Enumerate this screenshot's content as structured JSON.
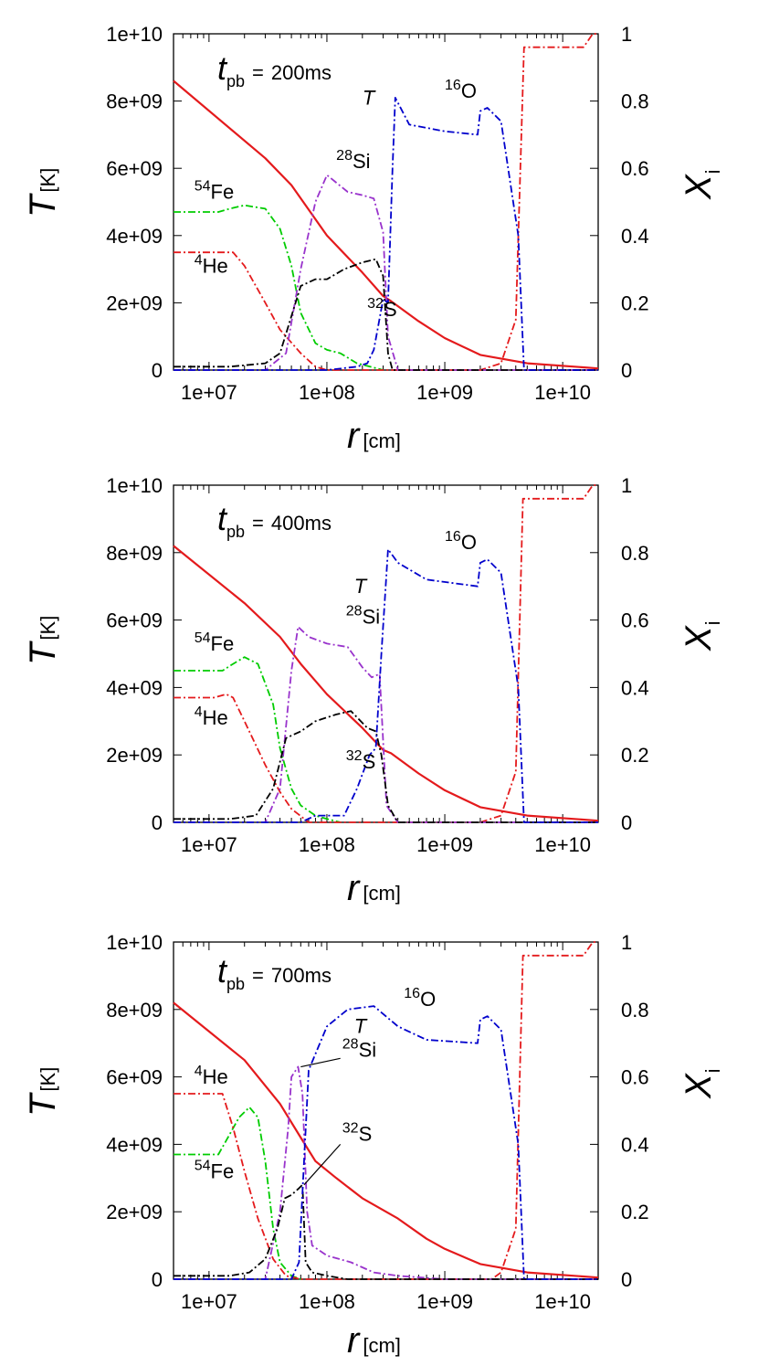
{
  "panels": [
    {
      "time_label": "200ms",
      "time_symbol": "t",
      "time_sub": "pb",
      "time_eq": "=",
      "ylabel_left": "T",
      "ylabel_left_unit": "[K]",
      "ylabel_right": "X",
      "ylabel_right_sub": "i",
      "xlabel": "r",
      "xlabel_unit": "[cm]"
    },
    {
      "time_label": "400ms",
      "time_symbol": "t",
      "time_sub": "pb",
      "time_eq": "=",
      "ylabel_left": "T",
      "ylabel_left_unit": "[K]",
      "ylabel_right": "X",
      "ylabel_right_sub": "i",
      "xlabel": "r",
      "xlabel_unit": "[cm]"
    },
    {
      "time_label": "700ms",
      "time_symbol": "t",
      "time_sub": "pb",
      "time_eq": "=",
      "ylabel_left": "T",
      "ylabel_left_unit": "[K]",
      "ylabel_right": "X",
      "ylabel_right_sub": "i",
      "xlabel": "r",
      "xlabel_unit": "[cm]"
    }
  ],
  "chart_data": [
    {
      "type": "line",
      "title": "t_pb = 200ms",
      "xscale": "log",
      "xlim": [
        5000000,
        20000000000
      ],
      "xticks": [
        "1e+07",
        "1e+08",
        "1e+09",
        "1e+10"
      ],
      "ylim_left": [
        0,
        10000000000
      ],
      "yticks_left": [
        "0",
        "2e+09",
        "4e+09",
        "6e+09",
        "8e+09",
        "1e+10"
      ],
      "ylim_right": [
        0,
        1
      ],
      "yticks_right": [
        "0",
        "0.2",
        "0.4",
        "0.6",
        "0.8",
        "1"
      ],
      "series": [
        {
          "name": "T",
          "axis": "left",
          "color": "#e41a1c",
          "dash": "solid",
          "x": [
            5000000.0,
            30000000.0,
            50000000.0,
            100000000.0,
            200000000.0,
            300000000.0,
            350000000.0,
            600000000.0,
            1000000000.0,
            2000000000.0,
            5000000000.0,
            20000000000.0
          ],
          "y": [
            8600000000.0,
            6300000000.0,
            5500000000.0,
            4000000000.0,
            2900000000.0,
            2200000000.0,
            2050000000.0,
            1450000000.0,
            950000000.0,
            450000000.0,
            200000000.0,
            50000000.0
          ]
        },
        {
          "name": "54Fe",
          "sup": "54",
          "el": "Fe",
          "axis": "right",
          "color": "#00cc00",
          "dash": "dashdot",
          "x": [
            5000000.0,
            12000000.0,
            15000000.0,
            20000000.0,
            30000000.0,
            40000000.0,
            50000000.0,
            60000000.0,
            80000000.0,
            100000000.0,
            130000000.0,
            180000000.0,
            300000000.0
          ],
          "y": [
            0.47,
            0.47,
            0.48,
            0.49,
            0.48,
            0.42,
            0.31,
            0.17,
            0.08,
            0.06,
            0.05,
            0.02,
            0
          ]
        },
        {
          "name": "4He",
          "sup": "4",
          "el": "He",
          "axis": "right",
          "color": "#e41a1c",
          "dash": "dashdot",
          "x": [
            5000000.0,
            16000000.0,
            20000000.0,
            30000000.0,
            40000000.0,
            60000000.0,
            80000000.0,
            100000000.0,
            2000000000.0,
            3000000000.0,
            4000000000.0,
            4700000000.0,
            15000000000.0,
            18000000000.0,
            20000000000.0
          ],
          "y": [
            0.35,
            0.35,
            0.31,
            0.2,
            0.12,
            0.05,
            0.01,
            0,
            0,
            0.02,
            0.15,
            0.96,
            0.96,
            1.0,
            1.0
          ]
        },
        {
          "name": "28Si",
          "sup": "28",
          "el": "Si",
          "axis": "right",
          "color": "#9933cc",
          "dash": "dashdot",
          "x": [
            5000000.0,
            30000000.0,
            45000000.0,
            60000000.0,
            80000000.0,
            100000000.0,
            150000000.0,
            200000000.0,
            250000000.0,
            300000000.0,
            330000000.0,
            400000000.0,
            1000000000.0,
            20000000000.0
          ],
          "y": [
            0,
            0,
            0.05,
            0.3,
            0.5,
            0.58,
            0.53,
            0.52,
            0.51,
            0.41,
            0.1,
            0,
            0,
            0
          ]
        },
        {
          "name": "32S",
          "sup": "32",
          "el": "S",
          "axis": "right",
          "color": "#000000",
          "dash": "dashdot",
          "x": [
            5000000.0,
            15000000.0,
            30000000.0,
            40000000.0,
            60000000.0,
            80000000.0,
            100000000.0,
            140000000.0,
            200000000.0,
            260000000.0,
            300000000.0,
            330000000.0,
            360000000.0,
            20000000000.0
          ],
          "y": [
            0.01,
            0.01,
            0.02,
            0.05,
            0.25,
            0.27,
            0.27,
            0.3,
            0.32,
            0.33,
            0.28,
            0.05,
            0,
            0
          ]
        },
        {
          "name": "16O",
          "sup": "16",
          "el": "O",
          "axis": "right",
          "color": "#0000cc",
          "dash": "dashdot",
          "x": [
            5000000.0,
            100000000.0,
            180000000.0,
            220000000.0,
            250000000.0,
            300000000.0,
            330000000.0,
            360000000.0,
            380000000.0,
            500000000.0,
            1000000000.0,
            1900000000.0,
            2000000000.0,
            2300000000.0,
            3000000000.0,
            4200000000.0,
            4700000000.0,
            20000000000.0
          ],
          "y": [
            0,
            0,
            0.01,
            0.02,
            0.06,
            0.21,
            0.2,
            0.6,
            0.81,
            0.73,
            0.71,
            0.7,
            0.77,
            0.78,
            0.74,
            0.4,
            0,
            0
          ]
        }
      ]
    },
    {
      "type": "line",
      "title": "t_pb = 400ms",
      "xscale": "log",
      "xlim": [
        5000000,
        20000000000
      ],
      "xticks": [
        "1e+07",
        "1e+08",
        "1e+09",
        "1e+10"
      ],
      "ylim_left": [
        0,
        10000000000
      ],
      "yticks_left": [
        "0",
        "2e+09",
        "4e+09",
        "6e+09",
        "8e+09",
        "1e+10"
      ],
      "ylim_right": [
        0,
        1
      ],
      "yticks_right": [
        "0",
        "0.2",
        "0.4",
        "0.6",
        "0.8",
        "1"
      ],
      "series": [
        {
          "name": "T",
          "axis": "left",
          "color": "#e41a1c",
          "dash": "solid",
          "x": [
            5000000.0,
            20000000.0,
            40000000.0,
            60000000.0,
            100000000.0,
            200000000.0,
            300000000.0,
            350000000.0,
            600000000.0,
            1000000000.0,
            2000000000.0,
            5000000000.0,
            20000000000.0
          ],
          "y": [
            8200000000.0,
            6500000000.0,
            5500000000.0,
            4700000000.0,
            3800000000.0,
            2800000000.0,
            2150000000.0,
            2050000000.0,
            1450000000.0,
            950000000.0,
            450000000.0,
            200000000.0,
            50000000.0
          ]
        },
        {
          "name": "54Fe",
          "sup": "54",
          "el": "Fe",
          "axis": "right",
          "color": "#00cc00",
          "dash": "dashdot",
          "x": [
            5000000.0,
            13000000.0,
            16000000.0,
            20000000.0,
            26000000.0,
            35000000.0,
            40000000.0,
            50000000.0,
            60000000.0,
            80000000.0,
            100000000.0,
            130000000.0
          ],
          "y": [
            0.45,
            0.45,
            0.47,
            0.49,
            0.47,
            0.35,
            0.22,
            0.1,
            0.05,
            0.02,
            0.01,
            0
          ]
        },
        {
          "name": "4He",
          "sup": "4",
          "el": "He",
          "axis": "right",
          "color": "#e41a1c",
          "dash": "dashdot",
          "x": [
            5000000.0,
            11000000.0,
            14000000.0,
            16000000.0,
            20000000.0,
            30000000.0,
            40000000.0,
            50000000.0,
            70000000.0,
            2000000000.0,
            3000000000.0,
            4000000000.0,
            4600000000.0,
            15000000000.0,
            18000000000.0,
            20000000000.0
          ],
          "y": [
            0.37,
            0.37,
            0.38,
            0.37,
            0.3,
            0.17,
            0.09,
            0.04,
            0,
            0,
            0.02,
            0.15,
            0.96,
            0.96,
            1.0,
            1.0
          ]
        },
        {
          "name": "28Si",
          "sup": "28",
          "el": "Si",
          "axis": "right",
          "color": "#9933cc",
          "dash": "dashdot",
          "x": [
            5000000.0,
            30000000.0,
            40000000.0,
            50000000.0,
            57000000.0,
            70000000.0,
            100000000.0,
            150000000.0,
            200000000.0,
            240000000.0,
            280000000.0,
            320000000.0,
            400000000.0,
            20000000000.0
          ],
          "y": [
            0,
            0,
            0.1,
            0.45,
            0.58,
            0.55,
            0.53,
            0.52,
            0.46,
            0.43,
            0.44,
            0.05,
            0,
            0
          ]
        },
        {
          "name": "32S",
          "sup": "32",
          "el": "S",
          "axis": "right",
          "color": "#000000",
          "dash": "dashdot",
          "x": [
            5000000.0,
            15000000.0,
            25000000.0,
            35000000.0,
            45000000.0,
            60000000.0,
            80000000.0,
            120000000.0,
            160000000.0,
            220000000.0,
            260000000.0,
            290000000.0,
            330000000.0,
            400000000.0,
            20000000000.0
          ],
          "y": [
            0.01,
            0.01,
            0.02,
            0.1,
            0.25,
            0.27,
            0.3,
            0.32,
            0.33,
            0.28,
            0.27,
            0.2,
            0.05,
            0,
            0
          ]
        },
        {
          "name": "16O",
          "sup": "16",
          "el": "O",
          "axis": "right",
          "color": "#0000cc",
          "dash": "dashdot",
          "x": [
            5000000.0,
            60000000.0,
            80000000.0,
            140000000.0,
            180000000.0,
            230000000.0,
            260000000.0,
            290000000.0,
            330000000.0,
            400000000.0,
            700000000.0,
            1900000000.0,
            2000000000.0,
            2300000000.0,
            3000000000.0,
            4200000000.0,
            4700000000.0,
            20000000000.0
          ],
          "y": [
            0,
            0,
            0.02,
            0.02,
            0.1,
            0.2,
            0.22,
            0.5,
            0.81,
            0.77,
            0.72,
            0.7,
            0.77,
            0.78,
            0.74,
            0.4,
            0,
            0
          ]
        }
      ]
    },
    {
      "type": "line",
      "title": "t_pb = 700ms",
      "xscale": "log",
      "xlim": [
        5000000,
        20000000000
      ],
      "xticks": [
        "1e+07",
        "1e+08",
        "1e+09",
        "1e+10"
      ],
      "ylim_left": [
        0,
        10000000000
      ],
      "yticks_left": [
        "0",
        "2e+09",
        "4e+09",
        "6e+09",
        "8e+09",
        "1e+10"
      ],
      "ylim_right": [
        0,
        1
      ],
      "yticks_right": [
        "0",
        "0.2",
        "0.4",
        "0.6",
        "0.8",
        "1"
      ],
      "series": [
        {
          "name": "T",
          "axis": "left",
          "color": "#e41a1c",
          "dash": "solid",
          "x": [
            5000000.0,
            20000000.0,
            40000000.0,
            60000000.0,
            80000000.0,
            120000000.0,
            200000000.0,
            400000000.0,
            700000000.0,
            1000000000.0,
            2000000000.0,
            5000000000.0,
            20000000000.0
          ],
          "y": [
            8200000000.0,
            6500000000.0,
            5200000000.0,
            4200000000.0,
            3500000000.0,
            3000000000.0,
            2400000000.0,
            1800000000.0,
            1200000000.0,
            900000000.0,
            450000000.0,
            200000000.0,
            50000000.0
          ]
        },
        {
          "name": "54Fe",
          "sup": "54",
          "el": "Fe",
          "axis": "right",
          "color": "#00cc00",
          "dash": "dashdot",
          "x": [
            5000000.0,
            12000000.0,
            15000000.0,
            18000000.0,
            22000000.0,
            26000000.0,
            30000000.0,
            35000000.0,
            40000000.0,
            50000000.0,
            60000000.0
          ],
          "y": [
            0.37,
            0.37,
            0.43,
            0.48,
            0.51,
            0.48,
            0.35,
            0.15,
            0.05,
            0.01,
            0
          ]
        },
        {
          "name": "4He",
          "sup": "4",
          "el": "He",
          "axis": "right",
          "color": "#e41a1c",
          "dash": "dashdot",
          "x": [
            5000000.0,
            13000000.0,
            16000000.0,
            20000000.0,
            26000000.0,
            35000000.0,
            45000000.0,
            60000000.0,
            2500000000.0,
            3000000000.0,
            4000000000.0,
            4600000000.0,
            15000000000.0,
            18000000000.0,
            20000000000.0
          ],
          "y": [
            0.55,
            0.55,
            0.45,
            0.32,
            0.18,
            0.06,
            0.01,
            0,
            0,
            0.02,
            0.15,
            0.96,
            0.96,
            1.0,
            1.0
          ]
        },
        {
          "name": "28Si",
          "sup": "28",
          "el": "Si",
          "axis": "right",
          "color": "#9933cc",
          "dash": "dashdot",
          "x": [
            5000000.0,
            30000000.0,
            40000000.0,
            47000000.0,
            50000000.0,
            57000000.0,
            62000000.0,
            68000000.0,
            75000000.0,
            100000000.0,
            160000000.0,
            250000000.0,
            400000000.0,
            1000000000.0,
            20000000000.0
          ],
          "y": [
            0,
            0,
            0.2,
            0.45,
            0.6,
            0.63,
            0.55,
            0.2,
            0.1,
            0.07,
            0.05,
            0.02,
            0.01,
            0,
            0
          ]
        },
        {
          "name": "32S",
          "sup": "32",
          "el": "S",
          "axis": "right",
          "color": "#000000",
          "dash": "dashdot",
          "x": [
            5000000.0,
            15000000.0,
            22000000.0,
            30000000.0,
            38000000.0,
            44000000.0,
            50000000.0,
            58000000.0,
            62000000.0,
            66000000.0,
            75000000.0,
            100000000.0,
            150000000.0,
            20000000000.0
          ],
          "y": [
            0.01,
            0.01,
            0.02,
            0.06,
            0.15,
            0.24,
            0.25,
            0.27,
            0.28,
            0.05,
            0.02,
            0.01,
            0,
            0
          ]
        },
        {
          "name": "16O",
          "sup": "16",
          "el": "O",
          "axis": "right",
          "color": "#0000cc",
          "dash": "dashdot",
          "x": [
            5000000.0,
            50000000.0,
            58000000.0,
            63000000.0,
            70000000.0,
            100000000.0,
            150000000.0,
            250000000.0,
            400000000.0,
            700000000.0,
            1900000000.0,
            2000000000.0,
            2300000000.0,
            3000000000.0,
            4200000000.0,
            4700000000.0,
            20000000000.0
          ],
          "y": [
            0,
            0,
            0.05,
            0.3,
            0.62,
            0.75,
            0.8,
            0.81,
            0.75,
            0.71,
            0.7,
            0.77,
            0.78,
            0.74,
            0.4,
            0,
            0
          ]
        }
      ]
    }
  ],
  "annotations": [
    [
      {
        "series": "T",
        "text": "T",
        "italic": true,
        "x": 200000000.0,
        "y": 0.79
      },
      {
        "series": "54Fe",
        "x": 7500000.0,
        "y": 0.51
      },
      {
        "series": "4He",
        "x": 7500000.0,
        "y": 0.29
      },
      {
        "series": "28Si",
        "x": 120000000.0,
        "y": 0.6
      },
      {
        "series": "32S",
        "x": 220000000.0,
        "y": 0.16
      },
      {
        "series": "16O",
        "x": 1000000000.0,
        "y": 0.81
      }
    ],
    [
      {
        "series": "T",
        "text": "T",
        "italic": true,
        "x": 170000000.0,
        "y": 0.68
      },
      {
        "series": "54Fe",
        "x": 7500000.0,
        "y": 0.51
      },
      {
        "series": "4He",
        "x": 7500000.0,
        "y": 0.29
      },
      {
        "series": "28Si",
        "x": 145000000.0,
        "y": 0.59
      },
      {
        "series": "32S",
        "x": 145000000.0,
        "y": 0.16
      },
      {
        "series": "16O",
        "x": 1000000000.0,
        "y": 0.81
      }
    ],
    [
      {
        "series": "T",
        "text": "T",
        "italic": true,
        "x": 170000000.0,
        "y": 0.73
      },
      {
        "series": "4He",
        "x": 7500000.0,
        "y": 0.58
      },
      {
        "series": "54Fe",
        "x": 7500000.0,
        "y": 0.3
      },
      {
        "series": "28Si",
        "x": 135000000.0,
        "y": 0.66
      },
      {
        "series": "32S",
        "x": 135000000.0,
        "y": 0.41
      },
      {
        "series": "16O",
        "x": 450000000.0,
        "y": 0.81
      }
    ]
  ]
}
